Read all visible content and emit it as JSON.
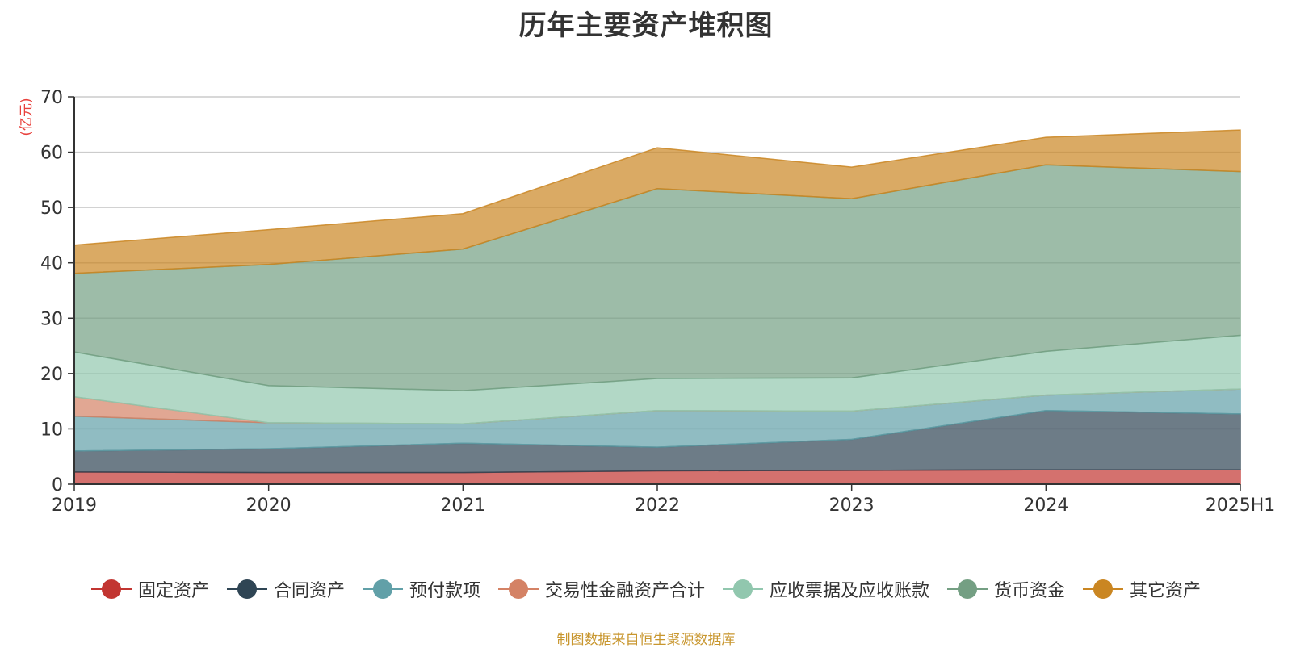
{
  "chart_data": {
    "type": "area",
    "title": "历年主要资产堆积图",
    "ylabel": "(亿元)",
    "xlabel": "",
    "x": [
      "2019",
      "2020",
      "2021",
      "2022",
      "2023",
      "2024",
      "2025H1"
    ],
    "ylim": [
      0,
      70
    ],
    "yticks": [
      0,
      10,
      20,
      30,
      40,
      50,
      60,
      70
    ],
    "grid": true,
    "stacked": true,
    "legend_position": "bottom",
    "series": [
      {
        "name": "固定资产",
        "color": "#c23531",
        "values": [
          2.2,
          2.1,
          2.1,
          2.4,
          2.5,
          2.6,
          2.6
        ]
      },
      {
        "name": "合同资产",
        "color": "#2f4554",
        "values": [
          3.8,
          4.3,
          5.3,
          4.3,
          5.6,
          10.7,
          10.1
        ]
      },
      {
        "name": "预付款项",
        "color": "#61a0a8",
        "values": [
          6.3,
          4.7,
          3.5,
          6.6,
          5.1,
          2.8,
          4.5
        ]
      },
      {
        "name": "交易性金融资产合计",
        "color": "#d48265",
        "values": [
          3.5,
          0,
          0,
          0,
          0,
          0,
          0
        ]
      },
      {
        "name": "应收票据及应收账款",
        "color": "#91c7ae",
        "values": [
          8.1,
          6.7,
          6.0,
          5.8,
          6.0,
          7.9,
          9.7
        ]
      },
      {
        "name": "货币资金",
        "color": "#749f83",
        "values": [
          14.2,
          21.9,
          25.6,
          34.3,
          32.4,
          33.7,
          29.6
        ]
      },
      {
        "name": "其它资产",
        "color": "#ca8622",
        "values": [
          5.1,
          6.3,
          6.4,
          7.4,
          5.7,
          5.0,
          7.5
        ]
      }
    ]
  },
  "source_note": "制图数据来自恒生聚源数据库"
}
